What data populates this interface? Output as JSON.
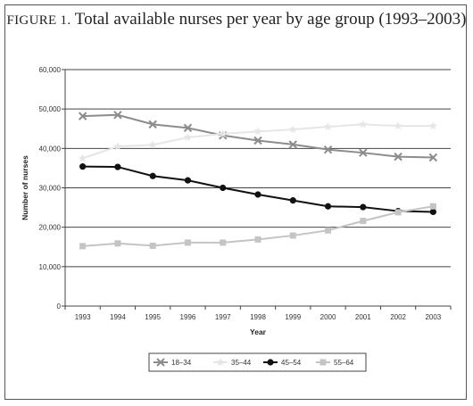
{
  "chart_data": {
    "type": "line",
    "title_prefix": "FIGURE 1.",
    "title": "Total available nurses per year by age group (1993–2003)",
    "xlabel": "Year",
    "ylabel": "Number of nurses",
    "categories": [
      "1993",
      "1994",
      "1995",
      "1996",
      "1997",
      "1998",
      "1999",
      "2000",
      "2001",
      "2002",
      "2003"
    ],
    "ylim": [
      0,
      60000
    ],
    "yticks": [
      0,
      10000,
      20000,
      30000,
      40000,
      50000,
      60000
    ],
    "ytick_labels": [
      "0",
      "10,000",
      "20,000",
      "30,000",
      "40,000",
      "50,000",
      "60,000"
    ],
    "grid": true,
    "legend_position": "bottom",
    "series": [
      {
        "name": "18–34",
        "marker": "x",
        "color": "#8c8c8c",
        "values": [
          48200,
          48500,
          46100,
          45200,
          43300,
          42000,
          41000,
          39700,
          38900,
          37900,
          37700
        ]
      },
      {
        "name": "35–44",
        "marker": "star",
        "color": "#e6e6e6",
        "values": [
          37500,
          40500,
          40900,
          42800,
          43700,
          44300,
          44800,
          45500,
          46100,
          45700,
          45700
        ]
      },
      {
        "name": "45–54",
        "marker": "circle",
        "color": "#111111",
        "values": [
          35400,
          35300,
          33000,
          31900,
          30000,
          28300,
          26800,
          25300,
          25100,
          24100,
          23900
        ]
      },
      {
        "name": "55–64",
        "marker": "square",
        "color": "#c4c4c4",
        "values": [
          15200,
          15900,
          15300,
          16100,
          16100,
          16900,
          17900,
          19200,
          21600,
          23800,
          25300
        ]
      }
    ]
  }
}
